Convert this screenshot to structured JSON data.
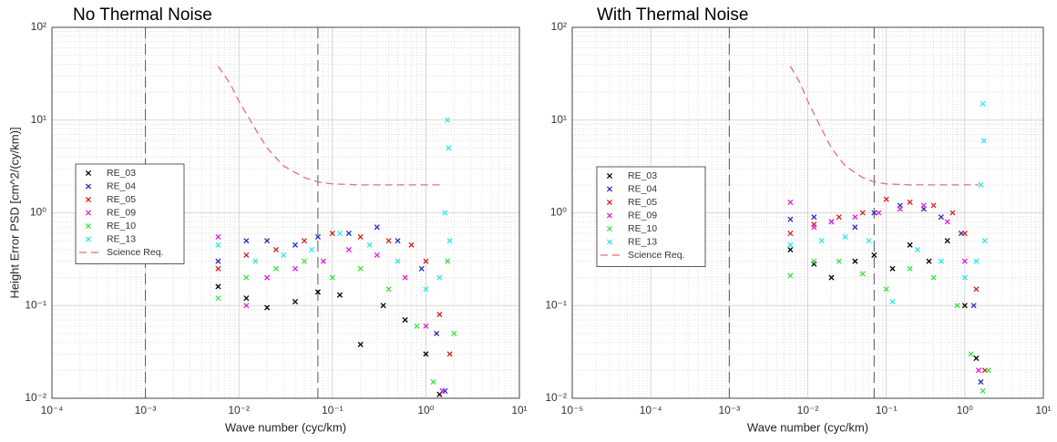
{
  "chart_data": [
    {
      "type": "scatter",
      "title": "No Thermal Noise",
      "xlabel": "Wave number (cyc/km)",
      "ylabel": "Height Error PSD [cm^2/(cy/km)]",
      "xscale": "log",
      "yscale": "log",
      "grid": true,
      "legend": "center left",
      "xlim": [
        0.0001,
        10
      ],
      "ylim": [
        0.01,
        100
      ],
      "xticks": [
        {
          "value": 0.0001,
          "label": "10⁻⁴"
        },
        {
          "value": 0.001,
          "label": "10⁻³"
        },
        {
          "value": 0.01,
          "label": "10⁻²"
        },
        {
          "value": 0.1,
          "label": "10⁻¹"
        },
        {
          "value": 1,
          "label": "10⁰"
        },
        {
          "value": 10,
          "label": "10¹"
        }
      ],
      "yticks": [
        {
          "value": 0.01,
          "label": "10⁻²"
        },
        {
          "value": 0.1,
          "label": "10⁻¹"
        },
        {
          "value": 1,
          "label": "10⁰"
        },
        {
          "value": 10,
          "label": "10¹"
        },
        {
          "value": 100,
          "label": "10²"
        }
      ],
      "vlines": [
        0.001,
        0.07
      ],
      "series": [
        {
          "name": "RE_03",
          "color": "#000000",
          "mode": "marker",
          "x": [
            0.006,
            0.012,
            0.02,
            0.04,
            0.07,
            0.12,
            0.2,
            0.35,
            0.6,
            1.0,
            1.4
          ],
          "values": [
            0.16,
            0.12,
            0.095,
            0.11,
            0.14,
            0.13,
            0.038,
            0.1,
            0.07,
            0.03,
            0.011
          ]
        },
        {
          "name": "RE_04",
          "color": "#2a2ab8",
          "mode": "marker",
          "x": [
            0.006,
            0.012,
            0.02,
            0.04,
            0.07,
            0.15,
            0.3,
            0.5,
            0.9,
            1.3,
            1.6
          ],
          "values": [
            0.3,
            0.5,
            0.5,
            0.45,
            0.55,
            0.6,
            0.7,
            0.5,
            0.25,
            0.05,
            0.012
          ]
        },
        {
          "name": "RE_05",
          "color": "#d42020",
          "mode": "marker",
          "x": [
            0.006,
            0.012,
            0.025,
            0.05,
            0.1,
            0.2,
            0.4,
            0.7,
            1.0,
            1.4,
            1.8
          ],
          "values": [
            0.25,
            0.35,
            0.4,
            0.5,
            0.6,
            0.55,
            0.5,
            0.45,
            0.3,
            0.08,
            0.03
          ]
        },
        {
          "name": "RE_09",
          "color": "#e020e0",
          "mode": "marker",
          "x": [
            0.006,
            0.012,
            0.02,
            0.04,
            0.08,
            0.15,
            0.3,
            0.6,
            1.0,
            1.5
          ],
          "values": [
            0.55,
            0.1,
            0.2,
            0.25,
            0.3,
            0.4,
            0.35,
            0.2,
            0.06,
            0.012
          ]
        },
        {
          "name": "RE_10",
          "color": "#40e040",
          "mode": "marker",
          "x": [
            0.006,
            0.012,
            0.025,
            0.05,
            0.1,
            0.2,
            0.4,
            0.8,
            1.2,
            1.7,
            2.0
          ],
          "values": [
            0.12,
            0.2,
            0.25,
            0.3,
            0.2,
            0.25,
            0.15,
            0.06,
            0.015,
            0.3,
            0.05
          ]
        },
        {
          "name": "RE_13",
          "color": "#30e8e8",
          "mode": "marker",
          "x": [
            0.006,
            0.015,
            0.03,
            0.06,
            0.12,
            0.25,
            0.5,
            1.0,
            1.4,
            1.6,
            1.7,
            1.75,
            1.8
          ],
          "values": [
            0.45,
            0.3,
            0.35,
            0.4,
            0.6,
            0.45,
            0.3,
            0.15,
            0.2,
            1.0,
            10,
            5,
            0.5
          ]
        },
        {
          "name": "Science Req.",
          "color": "#e07070",
          "mode": "dashed-line",
          "x": [
            0.006,
            0.008,
            0.01,
            0.015,
            0.02,
            0.03,
            0.05,
            0.07,
            0.1,
            0.2,
            0.5,
            1.0,
            1.5
          ],
          "values": [
            38,
            25,
            16,
            8,
            5,
            3.2,
            2.4,
            2.15,
            2.05,
            2,
            2,
            2,
            2
          ]
        }
      ]
    },
    {
      "type": "scatter",
      "title": "With  Thermal Noise",
      "xlabel": "Wave number (cyc/km)",
      "xscale": "log",
      "yscale": "log",
      "grid": true,
      "legend": "center left",
      "xlim": [
        1e-05,
        10
      ],
      "ylim": [
        0.01,
        100
      ],
      "xticks": [
        {
          "value": 1e-05,
          "label": "10⁻⁵"
        },
        {
          "value": 0.0001,
          "label": "10⁻⁴"
        },
        {
          "value": 0.001,
          "label": "10⁻³"
        },
        {
          "value": 0.01,
          "label": "10⁻²"
        },
        {
          "value": 0.1,
          "label": "10⁻¹"
        },
        {
          "value": 1,
          "label": "10⁰"
        },
        {
          "value": 10,
          "label": "10¹"
        }
      ],
      "yticks": [
        {
          "value": 0.01,
          "label": "10⁻²"
        },
        {
          "value": 0.1,
          "label": "10⁻¹"
        },
        {
          "value": 1,
          "label": "10⁰"
        },
        {
          "value": 10,
          "label": "10¹"
        },
        {
          "value": 100,
          "label": "10²"
        }
      ],
      "vlines": [
        0.001,
        0.07
      ],
      "series": [
        {
          "name": "RE_03",
          "color": "#000000",
          "mode": "marker",
          "x": [
            0.006,
            0.012,
            0.02,
            0.04,
            0.07,
            0.12,
            0.2,
            0.35,
            0.6,
            1.0,
            1.4
          ],
          "values": [
            0.4,
            0.28,
            0.2,
            0.3,
            0.35,
            0.25,
            0.45,
            0.3,
            0.5,
            0.1,
            0.027
          ]
        },
        {
          "name": "RE_04",
          "color": "#2a2ab8",
          "mode": "marker",
          "x": [
            0.006,
            0.012,
            0.02,
            0.04,
            0.07,
            0.15,
            0.3,
            0.5,
            0.9,
            1.3,
            1.6
          ],
          "values": [
            0.85,
            0.9,
            0.8,
            0.7,
            1.0,
            1.2,
            1.1,
            0.9,
            0.6,
            0.1,
            0.015
          ]
        },
        {
          "name": "RE_05",
          "color": "#d42020",
          "mode": "marker",
          "x": [
            0.006,
            0.012,
            0.025,
            0.05,
            0.1,
            0.2,
            0.4,
            0.7,
            1.0,
            1.4,
            1.8
          ],
          "values": [
            0.6,
            0.75,
            0.9,
            1.0,
            1.4,
            1.3,
            1.2,
            1.0,
            0.6,
            0.15,
            0.02
          ]
        },
        {
          "name": "RE_09",
          "color": "#e020e0",
          "mode": "marker",
          "x": [
            0.006,
            0.012,
            0.02,
            0.04,
            0.08,
            0.15,
            0.3,
            0.6,
            1.0,
            1.5
          ],
          "values": [
            1.3,
            0.7,
            0.8,
            0.9,
            1.0,
            1.1,
            1.2,
            0.8,
            0.3,
            0.02
          ]
        },
        {
          "name": "RE_10",
          "color": "#40e040",
          "mode": "marker",
          "x": [
            0.006,
            0.012,
            0.025,
            0.05,
            0.1,
            0.2,
            0.4,
            0.8,
            1.2,
            1.7,
            2.0
          ],
          "values": [
            0.21,
            0.3,
            0.3,
            0.22,
            0.15,
            0.25,
            0.2,
            0.1,
            0.03,
            0.012,
            0.02
          ]
        },
        {
          "name": "RE_13",
          "color": "#30e8e8",
          "mode": "marker",
          "x": [
            0.006,
            0.015,
            0.03,
            0.06,
            0.12,
            0.25,
            0.5,
            1.0,
            1.4,
            1.6,
            1.7,
            1.75,
            1.8
          ],
          "values": [
            0.45,
            0.5,
            0.55,
            0.5,
            0.11,
            0.4,
            0.3,
            0.2,
            0.3,
            2.0,
            15,
            6,
            0.5
          ]
        },
        {
          "name": "Science Req.",
          "color": "#e07070",
          "mode": "dashed-line",
          "x": [
            0.006,
            0.008,
            0.01,
            0.015,
            0.02,
            0.03,
            0.05,
            0.07,
            0.1,
            0.2,
            0.5,
            1.0,
            1.5
          ],
          "values": [
            38,
            25,
            16,
            8,
            5,
            3.2,
            2.4,
            2.15,
            2.05,
            2,
            2,
            2,
            2
          ]
        }
      ]
    }
  ]
}
